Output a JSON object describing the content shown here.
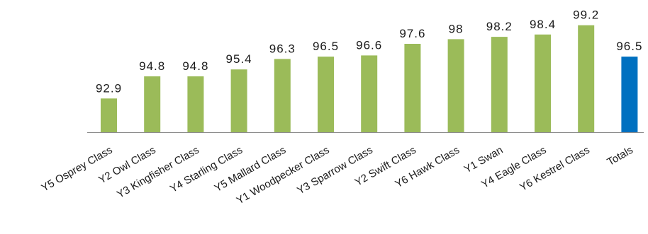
{
  "chart_data": {
    "type": "bar",
    "categories": [
      "Y5 Osprey Class",
      "Y2 Owl Class",
      "Y3 Kingfisher Class",
      "Y4 Starling Class",
      "Y5 Mallard Class",
      "Y1 Woodpecker Class",
      "Y3 Sparrow Class",
      "Y2 Swift Class",
      "Y6 Hawk Class",
      "Y1 Swan",
      "Y4 Eagle Class",
      "Y6 Kestrel Class",
      "Totals"
    ],
    "values": [
      92.9,
      94.8,
      94.8,
      95.4,
      96.3,
      96.5,
      96.6,
      97.6,
      98,
      98.2,
      98.4,
      99.2,
      96.5
    ],
    "value_labels": [
      "92.9",
      "94.8",
      "94.8",
      "95.4",
      "96.3",
      "96.5",
      "96.6",
      "97.6",
      "98",
      "98.2",
      "98.4",
      "99.2",
      "96.5"
    ],
    "ylim": [
      90,
      100
    ],
    "grid": false,
    "legend": "none",
    "colors": {
      "bar": "#9bbb59",
      "highlight": "#0070c0",
      "highlight_category": "Totals",
      "axis": "#8c8c8c"
    }
  }
}
